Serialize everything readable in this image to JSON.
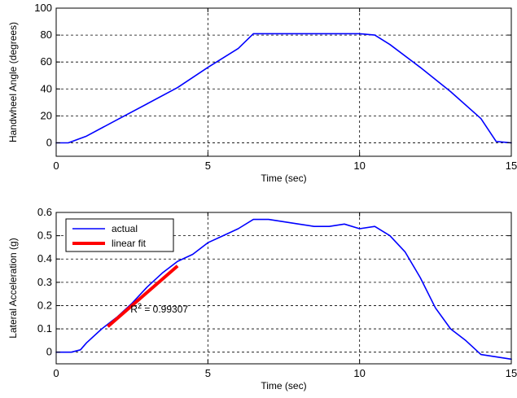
{
  "chart_data": [
    {
      "type": "line",
      "xlabel": "Time (sec)",
      "ylabel": "Handwheel Angle (degrees)",
      "xlim": [
        0,
        15
      ],
      "ylim": [
        -10,
        100
      ],
      "xticks": [
        0,
        5,
        10,
        15
      ],
      "yticks": [
        0,
        20,
        40,
        60,
        80,
        100
      ],
      "grid": true,
      "series": [
        {
          "color": "#0000ff",
          "x": [
            0,
            0.4,
            1.0,
            2.0,
            3.0,
            4.0,
            5.0,
            6.0,
            6.5,
            7.0,
            8.0,
            9.0,
            10.0,
            10.5,
            11.0,
            12.0,
            13.0,
            14.0,
            14.5,
            15.0
          ],
          "y": [
            0,
            0,
            5,
            17,
            29,
            41,
            56,
            70,
            81,
            81,
            81,
            81,
            81,
            80,
            73,
            56,
            38,
            18,
            1,
            0
          ]
        }
      ]
    },
    {
      "type": "line",
      "xlabel": "Time (sec)",
      "ylabel": "Lateral Acceleration (g)",
      "xlim": [
        0,
        15
      ],
      "ylim": [
        -0.05,
        0.6
      ],
      "xticks": [
        0,
        5,
        10,
        15
      ],
      "yticks": [
        0,
        0.1,
        0.2,
        0.3,
        0.4,
        0.5,
        0.6
      ],
      "grid": true,
      "legend_position": "top-left",
      "annotation": "R² = 0.99307",
      "series": [
        {
          "name": "actual",
          "color": "#0000ff",
          "x": [
            0,
            0.5,
            0.8,
            1.0,
            1.5,
            2.0,
            2.5,
            3.0,
            3.5,
            4.0,
            4.5,
            5.0,
            5.5,
            6.0,
            6.5,
            7.0,
            7.5,
            8.0,
            8.5,
            9.0,
            9.5,
            10.0,
            10.5,
            11.0,
            11.5,
            12.0,
            12.5,
            13.0,
            13.5,
            14.0,
            14.5,
            15.0
          ],
          "y": [
            0,
            0,
            0.01,
            0.04,
            0.1,
            0.15,
            0.21,
            0.28,
            0.34,
            0.39,
            0.42,
            0.47,
            0.5,
            0.53,
            0.57,
            0.57,
            0.56,
            0.55,
            0.54,
            0.54,
            0.55,
            0.53,
            0.54,
            0.5,
            0.43,
            0.32,
            0.19,
            0.1,
            0.05,
            -0.01,
            -0.02,
            -0.03
          ]
        },
        {
          "name": "linear fit",
          "color": "#ff0000",
          "x": [
            1.7,
            4.0
          ],
          "y": [
            0.11,
            0.37
          ]
        }
      ]
    }
  ]
}
